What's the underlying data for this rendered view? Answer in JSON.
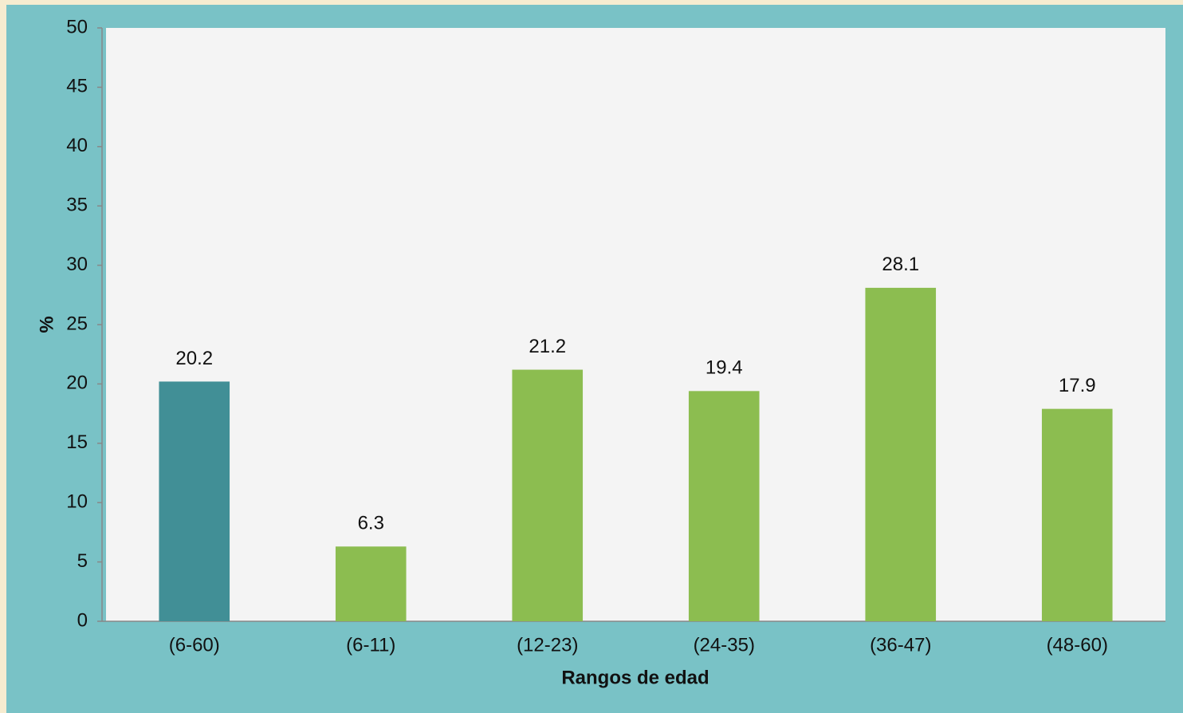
{
  "chart_data": {
    "type": "bar",
    "categories": [
      "(6-60)",
      "(6-11)",
      "(12-23)",
      "(24-35)",
      "(36-47)",
      "(48-60)"
    ],
    "values": [
      20.2,
      6.3,
      21.2,
      19.4,
      28.1,
      17.9
    ],
    "colors": [
      "#418f96",
      "#8cbd50",
      "#8cbd50",
      "#8cbd50",
      "#8cbd50",
      "#8cbd50"
    ],
    "y_label": "%",
    "x_label": "Rangos de edad",
    "ylim": [
      0,
      50
    ],
    "yticks": [
      0,
      5,
      10,
      15,
      20,
      25,
      30,
      35,
      40,
      45,
      50
    ],
    "grid": false
  }
}
